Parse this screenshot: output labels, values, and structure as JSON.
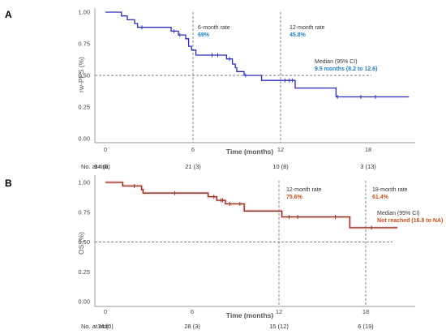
{
  "chart_data": [
    {
      "type": "line",
      "panel_label": "A",
      "ylabel": "rw-PFS (%)",
      "xlabel": "Time (months)",
      "x_ticks": [
        "0",
        "6",
        "12",
        "18"
      ],
      "y_ticks": [
        "0.00",
        "0.25",
        "0.50",
        "0.75",
        "1.00"
      ],
      "xlim": [
        -1,
        21
      ],
      "ylim": [
        0,
        1
      ],
      "color": "#2b2bb8",
      "steps": [
        [
          0,
          1.0
        ],
        [
          1.1,
          1.0
        ],
        [
          1.1,
          0.97
        ],
        [
          1.5,
          0.97
        ],
        [
          1.5,
          0.94
        ],
        [
          2,
          0.94
        ],
        [
          2,
          0.91
        ],
        [
          2.2,
          0.91
        ],
        [
          2.2,
          0.88
        ],
        [
          4.5,
          0.88
        ],
        [
          4.5,
          0.85
        ],
        [
          5,
          0.85
        ],
        [
          5,
          0.82
        ],
        [
          5.5,
          0.82
        ],
        [
          5.5,
          0.79
        ],
        [
          5.7,
          0.79
        ],
        [
          5.7,
          0.73
        ],
        [
          5.9,
          0.73
        ],
        [
          5.9,
          0.7
        ],
        [
          6.2,
          0.7
        ],
        [
          6.2,
          0.66
        ],
        [
          8.3,
          0.66
        ],
        [
          8.3,
          0.63
        ],
        [
          8.7,
          0.63
        ],
        [
          8.7,
          0.59
        ],
        [
          8.9,
          0.59
        ],
        [
          8.9,
          0.56
        ],
        [
          9,
          0.56
        ],
        [
          9,
          0.53
        ],
        [
          9.5,
          0.53
        ],
        [
          9.5,
          0.5
        ],
        [
          10.7,
          0.5
        ],
        [
          10.7,
          0.46
        ],
        [
          13,
          0.46
        ],
        [
          13,
          0.4
        ],
        [
          15.8,
          0.4
        ],
        [
          15.8,
          0.33
        ],
        [
          20.8,
          0.33
        ]
      ],
      "censor": [
        [
          2.5,
          0.88
        ],
        [
          4.7,
          0.85
        ],
        [
          5.1,
          0.82
        ],
        [
          7.3,
          0.66
        ],
        [
          7.7,
          0.66
        ],
        [
          8.5,
          0.63
        ],
        [
          9.6,
          0.5
        ],
        [
          12.3,
          0.46
        ],
        [
          12.6,
          0.46
        ],
        [
          12.8,
          0.46
        ],
        [
          15.9,
          0.33
        ],
        [
          17.5,
          0.33
        ],
        [
          18.5,
          0.33
        ]
      ],
      "ref_x": [
        6,
        12
      ],
      "ref_y": 0.5,
      "annotations": [
        {
          "title": "6-month rate",
          "value": "69%"
        },
        {
          "title": "12-month rate",
          "value": "45.8%"
        },
        {
          "title": "Median (95% CI)",
          "value": "9.5 months (8.2 to 12.6)"
        }
      ],
      "value_color": "#1f7fc0",
      "risk_label": "No. at risk:",
      "risk": [
        "34 (0)",
        "21 (3)",
        "10 (8)",
        "3 (13)"
      ]
    },
    {
      "type": "line",
      "panel_label": "B",
      "ylabel": "OS (%)",
      "xlabel": "Time (months)",
      "x_ticks": [
        "0",
        "6",
        "12",
        "18"
      ],
      "y_ticks": [
        "0.00",
        "0.25",
        "0.50",
        "0.75",
        "1.00"
      ],
      "xlim": [
        -1,
        21
      ],
      "ylim": [
        0,
        1
      ],
      "color": "#8b2e16",
      "steps": [
        [
          0,
          1.0
        ],
        [
          1.2,
          1.0
        ],
        [
          1.2,
          0.97
        ],
        [
          2.5,
          0.97
        ],
        [
          2.5,
          0.94
        ],
        [
          2.6,
          0.94
        ],
        [
          2.6,
          0.91
        ],
        [
          7.1,
          0.91
        ],
        [
          7.1,
          0.88
        ],
        [
          7.7,
          0.88
        ],
        [
          7.7,
          0.85
        ],
        [
          8.3,
          0.85
        ],
        [
          8.3,
          0.82
        ],
        [
          9.6,
          0.82
        ],
        [
          9.6,
          0.76
        ],
        [
          12.2,
          0.76
        ],
        [
          12.2,
          0.71
        ],
        [
          16.9,
          0.71
        ],
        [
          16.9,
          0.62
        ],
        [
          20.2,
          0.62
        ]
      ],
      "censor": [
        [
          2,
          0.97
        ],
        [
          4.8,
          0.91
        ],
        [
          7.5,
          0.88
        ],
        [
          8,
          0.85
        ],
        [
          8.1,
          0.85
        ],
        [
          8.6,
          0.82
        ],
        [
          9.3,
          0.82
        ],
        [
          12.7,
          0.71
        ],
        [
          13.3,
          0.71
        ],
        [
          15.9,
          0.71
        ],
        [
          18.4,
          0.62
        ]
      ],
      "ref_x": [
        12,
        18
      ],
      "ref_y": 0.5,
      "annotations": [
        {
          "title": "12-month rate",
          "value": "75.6%"
        },
        {
          "title": "18-month rate",
          "value": "61.4%"
        },
        {
          "title": "Median (95% CI)",
          "value": "Not reached  (16.8 to NA)"
        }
      ],
      "value_color": "#c0501c",
      "risk_label": "No. at risk:",
      "risk": [
        "34 (0)",
        "28 (3)",
        "15 (12)",
        "6 (19)"
      ]
    }
  ]
}
